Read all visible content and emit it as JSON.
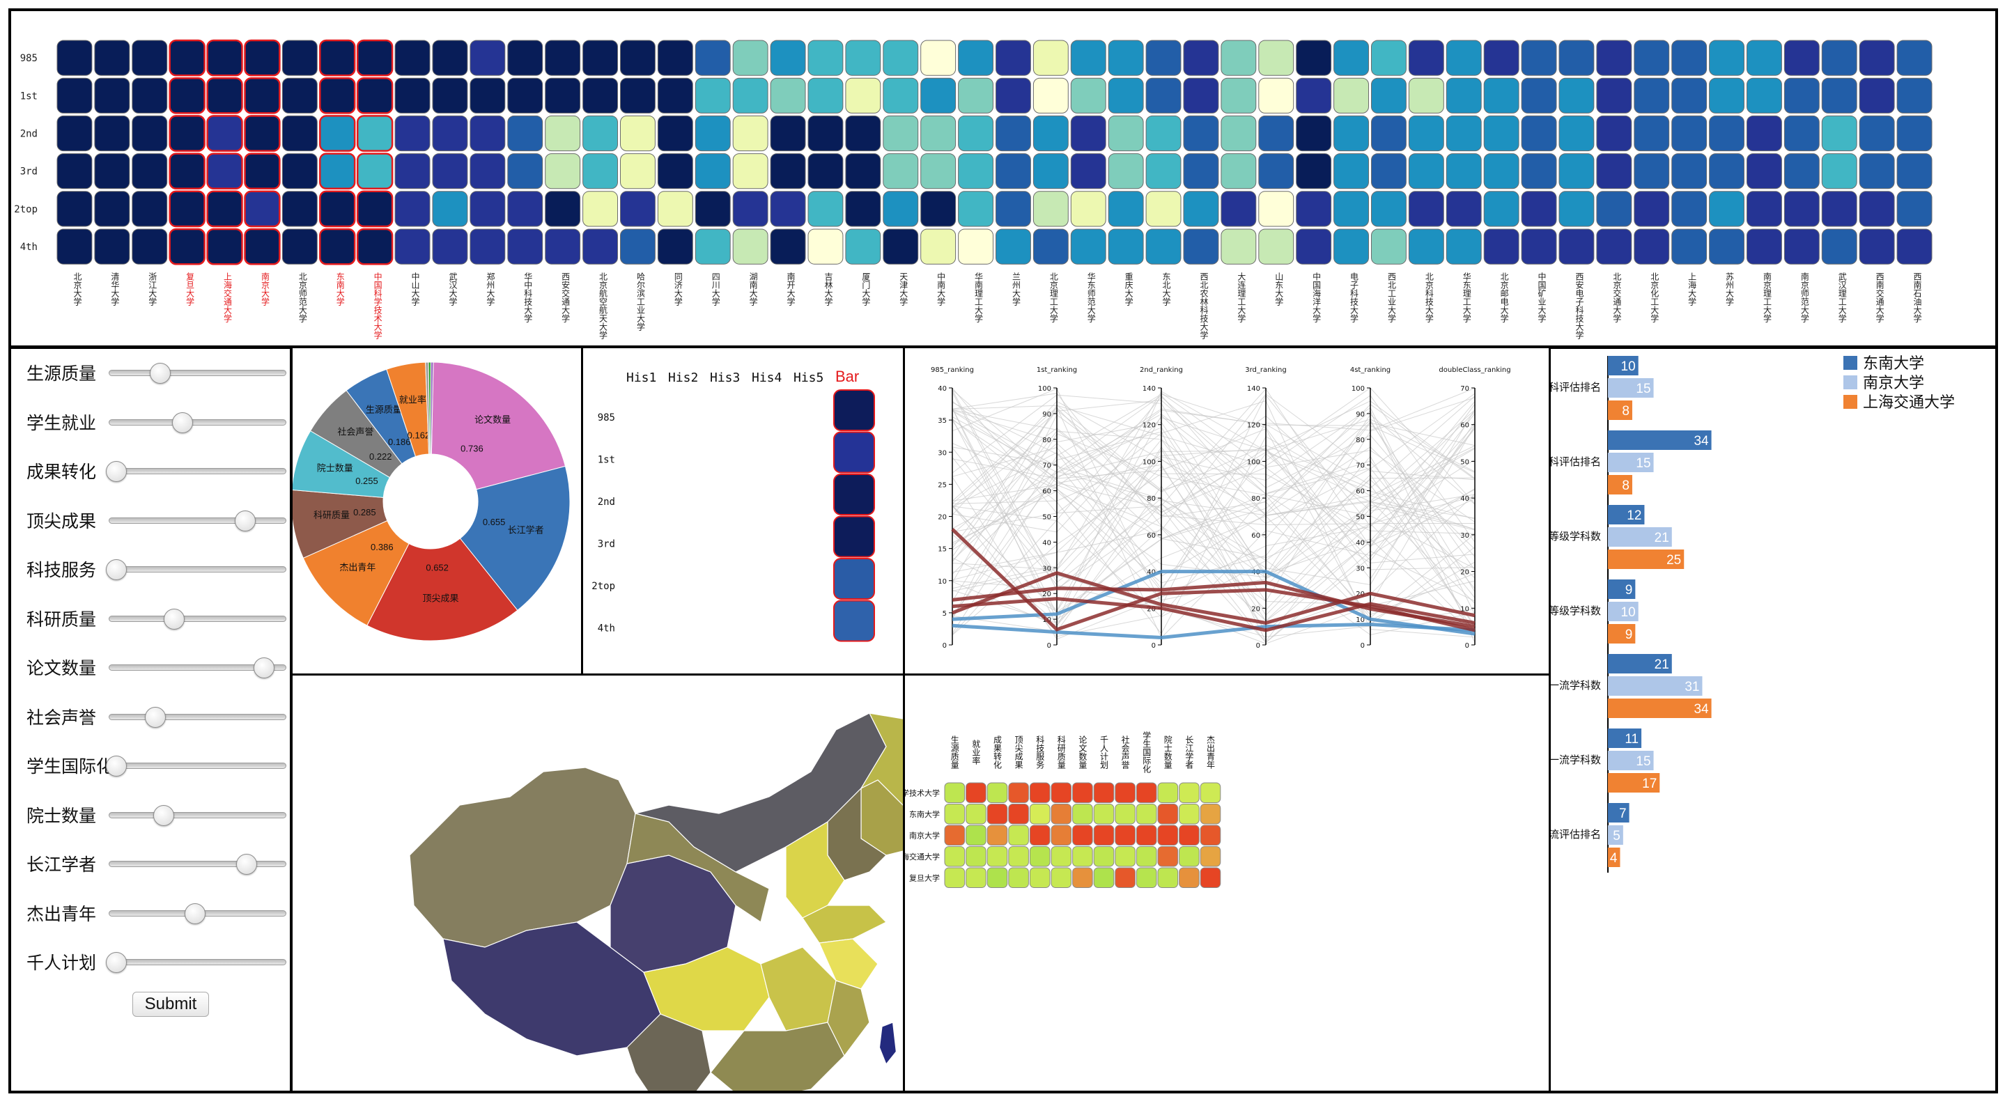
{
  "colors": {
    "scale_blue": [
      "#ffffd9",
      "#edf8b1",
      "#c7e9b4",
      "#7fcdbb",
      "#41b6c4",
      "#1d91c0",
      "#225ea8",
      "#253494",
      "#081d58"
    ],
    "highlight_red": "#e41a1c",
    "uni_a": "#3b73b4",
    "uni_b": "#aec6e8",
    "uni_c": "#f08232"
  },
  "heatmap": {
    "rows": [
      "985",
      "1st",
      "2nd",
      "3rd",
      "2top",
      "4th"
    ],
    "universities": [
      "北京大学",
      "清华大学",
      "浙江大学",
      "复旦大学",
      "上海交通大学",
      "南京大学",
      "北京师范大学",
      "东南大学",
      "中国科学技术大学",
      "中山大学",
      "武汉大学",
      "郑州大学",
      "华中科技大学",
      "西安交通大学",
      "北京航空航天大学",
      "哈尔滨工业大学",
      "同济大学",
      "四川大学",
      "湖南大学",
      "南开大学",
      "吉林大学",
      "厦门大学",
      "天津大学",
      "中南大学",
      "华南理工大学",
      "兰州大学",
      "北京理工大学",
      "华东师范大学",
      "重庆大学",
      "东北大学",
      "西北农林科技大学",
      "大连理工大学",
      "山东大学",
      "中国海洋大学",
      "电子科技大学",
      "西北工业大学",
      "北京科技大学",
      "华东理工大学",
      "北京邮电大学",
      "中国矿业大学",
      "西安电子科技大学",
      "北京交通大学",
      "北京化工大学",
      "上海大学",
      "苏州大学",
      "南京理工大学",
      "南京师范大学",
      "武汉理工大学",
      "西南交通大学",
      "西南石油大学"
    ],
    "highlighted": [
      3,
      4,
      5,
      7,
      8
    ],
    "values": [
      [
        8,
        8,
        8,
        8,
        8,
        8,
        8,
        8,
        8,
        8,
        8,
        7,
        8,
        8,
        8,
        8,
        8,
        6,
        3,
        5,
        4,
        4,
        4,
        0,
        5,
        7,
        1,
        5,
        5,
        6,
        7,
        3,
        2,
        8,
        5,
        4,
        7,
        5,
        7,
        6,
        6,
        7,
        6,
        6,
        5,
        5,
        7,
        6,
        7,
        6
      ],
      [
        8,
        8,
        8,
        8,
        8,
        8,
        8,
        8,
        8,
        8,
        8,
        8,
        8,
        8,
        8,
        8,
        8,
        4,
        4,
        3,
        4,
        1,
        4,
        5,
        3,
        7,
        0,
        3,
        5,
        6,
        7,
        3,
        0,
        7,
        2,
        5,
        2,
        5,
        5,
        6,
        5,
        7,
        6,
        6,
        5,
        5,
        6,
        6,
        7,
        6
      ],
      [
        8,
        8,
        8,
        8,
        7,
        8,
        8,
        5,
        4,
        7,
        7,
        7,
        6,
        2,
        4,
        1,
        8,
        5,
        1,
        8,
        8,
        8,
        3,
        3,
        4,
        6,
        5,
        7,
        3,
        4,
        6,
        3,
        6,
        8,
        5,
        6,
        5,
        5,
        5,
        6,
        5,
        7,
        6,
        6,
        6,
        7,
        6,
        4,
        6,
        6
      ],
      [
        8,
        8,
        8,
        8,
        7,
        8,
        8,
        5,
        4,
        7,
        7,
        7,
        6,
        2,
        4,
        1,
        8,
        5,
        1,
        8,
        8,
        8,
        3,
        3,
        4,
        6,
        5,
        7,
        3,
        4,
        6,
        3,
        6,
        8,
        5,
        6,
        5,
        5,
        5,
        6,
        5,
        7,
        6,
        6,
        6,
        7,
        6,
        4,
        6,
        6
      ],
      [
        8,
        8,
        8,
        8,
        8,
        7,
        8,
        8,
        8,
        7,
        5,
        7,
        7,
        8,
        1,
        7,
        1,
        8,
        7,
        7,
        4,
        8,
        5,
        8,
        4,
        6,
        2,
        1,
        5,
        1,
        5,
        7,
        0,
        7,
        5,
        5,
        7,
        7,
        5,
        7,
        5,
        6,
        7,
        6,
        5,
        7,
        7,
        7,
        7,
        6
      ],
      [
        8,
        8,
        8,
        8,
        8,
        8,
        8,
        8,
        8,
        7,
        7,
        7,
        7,
        7,
        7,
        6,
        8,
        4,
        2,
        8,
        0,
        4,
        8,
        1,
        0,
        5,
        6,
        5,
        5,
        5,
        6,
        2,
        2,
        7,
        5,
        3,
        5,
        5,
        7,
        7,
        7,
        7,
        7,
        6,
        6,
        7,
        7,
        6,
        7,
        7
      ]
    ]
  },
  "sliders": [
    {
      "label": "生源质量",
      "value": 0.28
    },
    {
      "label": "学生就业",
      "value": 0.42
    },
    {
      "label": "成果转化",
      "value": 0.0
    },
    {
      "label": "顶尖成果",
      "value": 0.82
    },
    {
      "label": "科技服务",
      "value": 0.0
    },
    {
      "label": "科研质量",
      "value": 0.37
    },
    {
      "label": "论文数量",
      "value": 0.94
    },
    {
      "label": "社会声誉",
      "value": 0.25
    },
    {
      "label": "学生国际化",
      "value": 0.0
    },
    {
      "label": "院士数量",
      "value": 0.3
    },
    {
      "label": "长江学者",
      "value": 0.83
    },
    {
      "label": "杰出青年",
      "value": 0.5
    },
    {
      "label": "千人计划",
      "value": 0.0
    }
  ],
  "submit_label": "Submit",
  "donut": {
    "slices": [
      {
        "label": "论文数量",
        "value": 0.736,
        "color": "#d676c3"
      },
      {
        "label": "长江学者",
        "value": 0.655,
        "color": "#3a75b7"
      },
      {
        "label": "顶尖成果",
        "value": 0.652,
        "color": "#d0362c"
      },
      {
        "label": "杰出青年",
        "value": 0.386,
        "color": "#f0812e"
      },
      {
        "label": "科研质量",
        "value": 0.285,
        "color": "#8e5a4b"
      },
      {
        "label": "院士数量",
        "value": 0.255,
        "color": "#52bccc"
      },
      {
        "label": "社会声誉",
        "value": 0.222,
        "color": "#7f7f7f"
      },
      {
        "label": "生源质量",
        "value": 0.186,
        "color": "#3a75b7"
      },
      {
        "label": "就业率",
        "value": 0.162,
        "color": "#f0812e"
      },
      {
        "label": "",
        "value": 0.012,
        "color": "#9e9e9e"
      },
      {
        "label": "",
        "value": 0.01,
        "color": "#2ca02c"
      },
      {
        "label": "",
        "value": 0.01,
        "color": "#9467bd"
      }
    ],
    "value_labels": [
      "0.736",
      "0.655",
      "0.652",
      "0.386",
      "0.285",
      "0.255",
      "0.222",
      "0.186",
      "0.162"
    ]
  },
  "history": {
    "tabs": [
      "His1",
      "His2",
      "His3",
      "His4",
      "His5",
      "Bar"
    ],
    "rows": [
      "985",
      "1st",
      "2nd",
      "3rd",
      "2top",
      "4th"
    ],
    "bar_colors": [
      "#0d1c5a",
      "#243396",
      "#0d1c5a",
      "#0d1c5a",
      "#2a5ca6",
      "#2f62ab"
    ]
  },
  "parallel": {
    "axes": [
      {
        "name": "985_ranking",
        "ticks": [
          "0",
          "5",
          "10",
          "15",
          "20",
          "25",
          "30",
          "35",
          "40"
        ],
        "max": 40
      },
      {
        "name": "1st_ranking",
        "ticks": [
          "0",
          "10",
          "20",
          "30",
          "40",
          "50",
          "60",
          "70",
          "80",
          "90",
          "100"
        ],
        "max": 100
      },
      {
        "name": "2nd_ranking",
        "ticks": [
          "0",
          "20",
          "40",
          "60",
          "80",
          "100",
          "120",
          "140"
        ],
        "max": 140
      },
      {
        "name": "3rd_ranking",
        "ticks": [
          "0",
          "20",
          "40",
          "60",
          "80",
          "100",
          "120",
          "140"
        ],
        "max": 140
      },
      {
        "name": "4st_ranking",
        "ticks": [
          "0",
          "10",
          "20",
          "30",
          "40",
          "50",
          "60",
          "70",
          "80",
          "90",
          "100"
        ],
        "max": 100
      },
      {
        "name": "doubleClass_ranking",
        "ticks": [
          "0",
          "10",
          "20",
          "30",
          "40",
          "50",
          "60",
          "70"
        ],
        "max": 70
      }
    ],
    "highlighted_lines": [
      {
        "color": "#4e91c7",
        "values": [
          4,
          12,
          40,
          40,
          10,
          3
        ]
      },
      {
        "color": "#4e91c7",
        "values": [
          3,
          5,
          4,
          10,
          8,
          4
        ]
      },
      {
        "color": "#8c2d2d",
        "values": [
          18,
          6,
          28,
          30,
          15,
          4
        ]
      },
      {
        "color": "#8c2d2d",
        "values": [
          7,
          22,
          30,
          34,
          14,
          5
        ]
      },
      {
        "color": "#8c2d2d",
        "values": [
          6,
          18,
          20,
          8,
          16,
          6
        ]
      },
      {
        "color": "#8c2d2d",
        "values": [
          5,
          28,
          22,
          12,
          20,
          8
        ]
      }
    ]
  },
  "map": {
    "regions": [
      {
        "name": "xinjiang",
        "color": "#857e5f"
      },
      {
        "name": "xizang",
        "color": "#3e3a6d"
      },
      {
        "name": "qinghai",
        "color": "#46406e"
      },
      {
        "name": "neimenggu",
        "color": "#5d5c63"
      },
      {
        "name": "gansu",
        "color": "#8e8856"
      },
      {
        "name": "heilongjiang",
        "color": "#b9b64a"
      },
      {
        "name": "jilin",
        "color": "#a8a149"
      },
      {
        "name": "liaoning",
        "color": "#7a7250"
      },
      {
        "name": "beijing",
        "color": "#1f2a78"
      },
      {
        "name": "hebei",
        "color": "#dad44a"
      },
      {
        "name": "shandong",
        "color": "#c7c248"
      },
      {
        "name": "jiangsu",
        "color": "#e8e05a"
      },
      {
        "name": "sichuan",
        "color": "#dfd848"
      },
      {
        "name": "yunnan",
        "color": "#6c6656"
      },
      {
        "name": "hunan",
        "color": "#c9c34a"
      },
      {
        "name": "guangdong",
        "color": "#8f8a52"
      },
      {
        "name": "fujian",
        "color": "#aaa34e"
      },
      {
        "name": "taiwan",
        "color": "#232a7e"
      },
      {
        "name": "hainan",
        "color": "#4c4a72"
      }
    ]
  },
  "matrix": {
    "columns": [
      "生源质量",
      "就业率",
      "成果转化",
      "顶尖成果",
      "科技服务",
      "科研质量",
      "论文数量",
      "千人计划",
      "社会声誉",
      "学生国际化",
      "院士数量",
      "长江学者",
      "杰出青年"
    ],
    "rows": [
      "中国科学技术大学",
      "东南大学",
      "南京大学",
      "上海交通大学",
      "复旦大学"
    ],
    "values": [
      [
        0.25,
        0.95,
        0.25,
        0.9,
        0.95,
        0.95,
        0.95,
        0.95,
        0.95,
        0.95,
        0.3,
        0.35,
        0.35
      ],
      [
        0.3,
        0.3,
        0.95,
        0.95,
        0.4,
        0.8,
        0.25,
        0.3,
        0.3,
        0.3,
        0.9,
        0.35,
        0.7
      ],
      [
        0.85,
        0.15,
        0.75,
        0.3,
        0.95,
        0.8,
        0.95,
        0.95,
        0.95,
        0.95,
        0.95,
        0.95,
        0.9
      ],
      [
        0.3,
        0.25,
        0.3,
        0.3,
        0.2,
        0.3,
        0.3,
        0.25,
        0.3,
        0.25,
        0.85,
        0.25,
        0.7
      ],
      [
        0.3,
        0.3,
        0.15,
        0.25,
        0.3,
        0.3,
        0.75,
        0.15,
        0.9,
        0.2,
        0.25,
        0.75,
        0.95
      ]
    ]
  },
  "chart_data": [
    {
      "type": "heatmap",
      "title": "",
      "x": [
        "北京大学",
        "清华大学",
        "浙江大学",
        "复旦大学",
        "上海交通大学",
        "南京大学",
        "北京师范大学",
        "东南大学",
        "中国科学技术大学",
        "中山大学"
      ],
      "y": [
        "985",
        "1st",
        "2nd",
        "3rd",
        "2top",
        "4th"
      ]
    },
    {
      "type": "pie",
      "title": "",
      "labels": [
        "论文数量",
        "长江学者",
        "顶尖成果",
        "杰出青年",
        "科研质量",
        "院士数量",
        "社会声誉",
        "生源质量",
        "就业率"
      ],
      "values": [
        0.736,
        0.655,
        0.652,
        0.386,
        0.285,
        0.255,
        0.222,
        0.186,
        0.162
      ]
    },
    {
      "type": "bar",
      "title": "",
      "orientation": "horizontal",
      "categories": [
        "第四次学科评估排名",
        "第三次学科评估排名",
        "A等级学科数",
        "B+等级学科数",
        "双一流学科数",
        "一流学科数",
        "双一流评估排名"
      ],
      "series": [
        {
          "name": "东南大学",
          "values": [
            10,
            34,
            12,
            9,
            21,
            11,
            7
          ]
        },
        {
          "name": "南京大学",
          "values": [
            15,
            15,
            21,
            10,
            31,
            15,
            5
          ]
        },
        {
          "name": "上海交通大学",
          "values": [
            8,
            8,
            25,
            9,
            34,
            17,
            4
          ]
        }
      ],
      "xlim": [
        0,
        40
      ],
      "legend": "top-right"
    }
  ]
}
